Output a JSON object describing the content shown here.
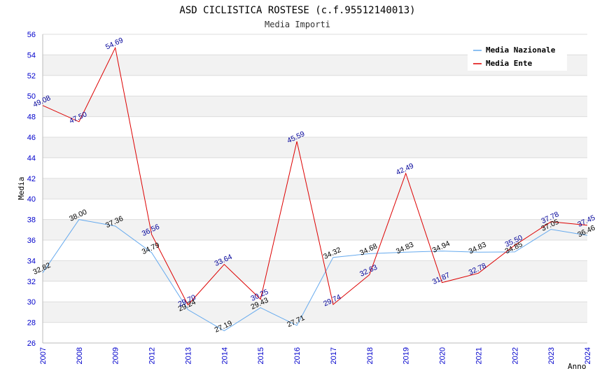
{
  "chart_data": {
    "type": "line",
    "title": "ASD CICLISTICA ROSTESE (c.f.95512140013)",
    "subtitle": "Media Importi",
    "xlabel": "Anno",
    "ylabel": "Media",
    "ylim": [
      26,
      56
    ],
    "yticks": [
      "26",
      "28",
      "30",
      "32",
      "34",
      "36",
      "38",
      "40",
      "42",
      "44",
      "46",
      "48",
      "50",
      "52",
      "54",
      "56"
    ],
    "categories": [
      "2007",
      "2008",
      "2009",
      "2012",
      "2013",
      "2014",
      "2015",
      "2016",
      "2017",
      "2018",
      "2019",
      "2020",
      "2021",
      "2022",
      "2023",
      "2024"
    ],
    "legend_position": "top-right",
    "series": [
      {
        "name": "Media Nazionale",
        "color": "#66aaee",
        "label_color": "#000000",
        "values": [
          32.82,
          38.0,
          37.36,
          34.79,
          29.24,
          27.19,
          29.43,
          27.71,
          34.32,
          34.68,
          34.83,
          34.94,
          34.83,
          34.85,
          37.05,
          36.46
        ],
        "labels": [
          "32.82",
          "38.00",
          "37.36",
          "34.79",
          "29.24",
          "27.19",
          "29.43",
          "27.71",
          "34.32",
          "34.68",
          "34.83",
          "34.94",
          "34.83",
          "34.85",
          "37.05",
          "36.46"
        ]
      },
      {
        "name": "Media Ente",
        "color": "#dd0000",
        "label_color": "#000099",
        "values": [
          49.08,
          47.5,
          54.69,
          36.56,
          29.7,
          33.64,
          30.25,
          45.59,
          29.74,
          32.63,
          42.49,
          31.87,
          32.78,
          35.5,
          37.78,
          37.45
        ],
        "labels": [
          "49.08",
          "47.50",
          "54.69",
          "36.56",
          "29.70",
          "33.64",
          "30.25",
          "45.59",
          "29.74",
          "32.63",
          "42.49",
          "31.87",
          "32.78",
          "35.50",
          "37.78",
          "37.45"
        ]
      }
    ]
  }
}
